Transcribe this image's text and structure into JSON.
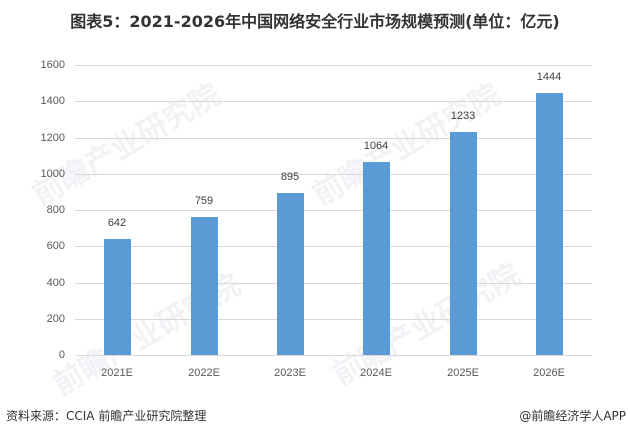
{
  "title": "图表5：2021-2026年中国网络安全行业市场规模预测(单位：亿元)",
  "chart_data": {
    "type": "bar",
    "title": "图表5：2021-2026年中国网络安全行业市场规模预测(单位：亿元)",
    "categories": [
      "2021E",
      "2022E",
      "2023E",
      "2024E",
      "2025E",
      "2026E"
    ],
    "values": [
      642,
      759,
      895,
      1064,
      1233,
      1444
    ],
    "xlabel": "",
    "ylabel": "亿元",
    "ylim": [
      0,
      1600
    ],
    "yticks": [
      0,
      200,
      400,
      600,
      800,
      1000,
      1200,
      1400,
      1600
    ],
    "grid": true,
    "legend": "none",
    "bar_color": "#5b9bd5"
  },
  "yticks": [
    "0",
    "200",
    "400",
    "600",
    "800",
    "1000",
    "1200",
    "1400",
    "1600"
  ],
  "bars": [
    {
      "label": "2021E",
      "value": "642"
    },
    {
      "label": "2022E",
      "value": "759"
    },
    {
      "label": "2023E",
      "value": "895"
    },
    {
      "label": "2024E",
      "value": "1064"
    },
    {
      "label": "2025E",
      "value": "1233"
    },
    {
      "label": "2026E",
      "value": "1444"
    }
  ],
  "footer": {
    "source": "资料来源：CCIA 前瞻产业研究院整理",
    "credit": "@前瞻经济学人APP"
  },
  "watermark": "前瞻产业研究院"
}
